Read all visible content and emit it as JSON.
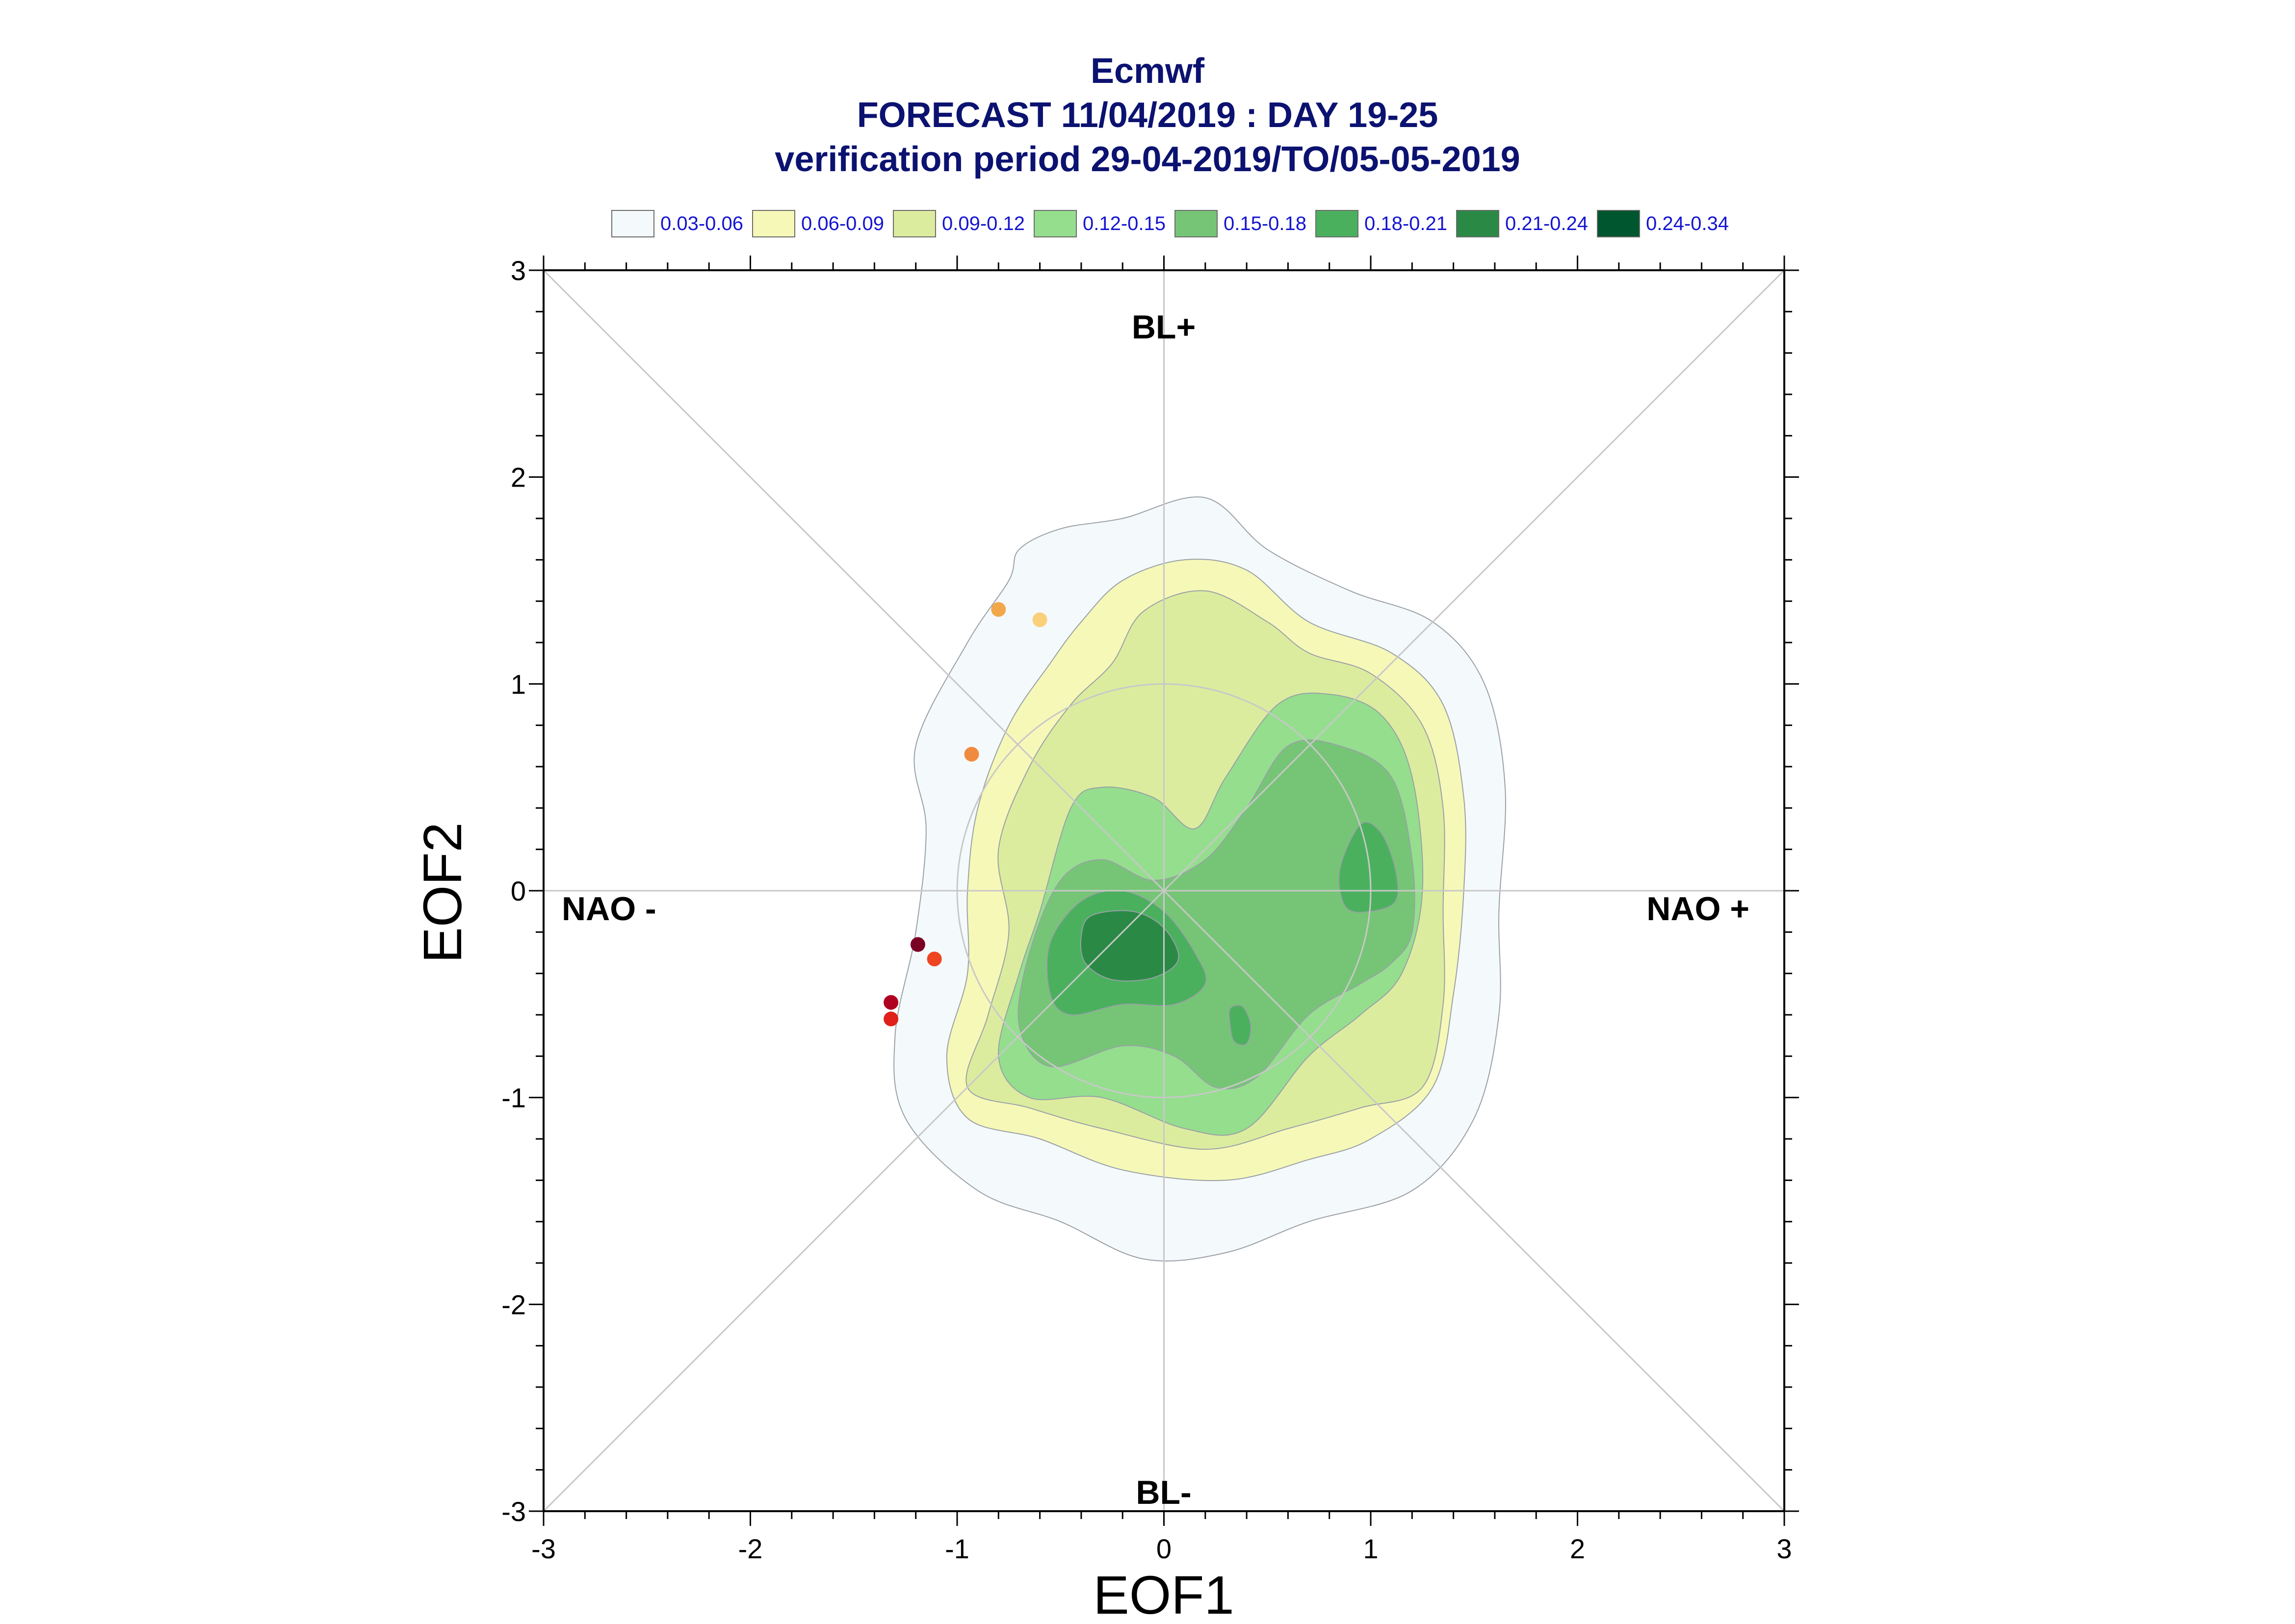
{
  "chart_data": {
    "type": "contour",
    "title_lines": [
      "Ecmwf",
      "FORECAST 11/04/2019 : DAY 19-25",
      "verification period 29-04-2019/TO/05-05-2019"
    ],
    "xlabel": "EOF1",
    "ylabel": "EOF2",
    "xlim": [
      -3,
      3
    ],
    "ylim": [
      -3,
      3
    ],
    "xticks": [
      "-3",
      "-2",
      "-1",
      "0",
      "1",
      "2",
      "3"
    ],
    "yticks": [
      "-3",
      "-2",
      "-1",
      "0",
      "1",
      "2",
      "3"
    ],
    "region_labels": {
      "top": "BL+",
      "bottom": "BL-",
      "left": "NAO -",
      "right": "NAO +"
    },
    "legend": [
      {
        "label": "0.03-0.06",
        "color": "#f4f9fc"
      },
      {
        "label": "0.06-0.09",
        "color": "#f6f8b8"
      },
      {
        "label": "0.09-0.12",
        "color": "#dcec9f"
      },
      {
        "label": "0.12-0.15",
        "color": "#94de8e"
      },
      {
        "label": "0.15-0.18",
        "color": "#76c576"
      },
      {
        "label": "0.18-0.21",
        "color": "#4bb05e"
      },
      {
        "label": "0.21-0.24",
        "color": "#2a8a45"
      },
      {
        "label": "0.24-0.34",
        "color": "#00562e"
      }
    ],
    "contours": [
      {
        "level": "0.03-0.06",
        "color": "#f4f9fc",
        "points": [
          [
            -0.7,
            1.65
          ],
          [
            -0.5,
            1.75
          ],
          [
            -0.2,
            1.8
          ],
          [
            0.2,
            1.9
          ],
          [
            0.5,
            1.65
          ],
          [
            0.9,
            1.45
          ],
          [
            1.3,
            1.3
          ],
          [
            1.55,
            1.0
          ],
          [
            1.65,
            0.5
          ],
          [
            1.62,
            -0.1
          ],
          [
            1.62,
            -0.6
          ],
          [
            1.5,
            -1.1
          ],
          [
            1.2,
            -1.45
          ],
          [
            0.7,
            -1.6
          ],
          [
            0.3,
            -1.75
          ],
          [
            -0.1,
            -1.78
          ],
          [
            -0.5,
            -1.6
          ],
          [
            -0.9,
            -1.45
          ],
          [
            -1.25,
            -1.1
          ],
          [
            -1.3,
            -0.7
          ],
          [
            -1.2,
            -0.2
          ],
          [
            -1.15,
            0.3
          ],
          [
            -1.2,
            0.7
          ],
          [
            -0.95,
            1.2
          ],
          [
            -0.75,
            1.5
          ]
        ]
      },
      {
        "level": "0.06-0.09",
        "color": "#f6f8b8",
        "points": [
          [
            -0.4,
            1.3
          ],
          [
            -0.2,
            1.5
          ],
          [
            0.1,
            1.6
          ],
          [
            0.4,
            1.55
          ],
          [
            0.7,
            1.3
          ],
          [
            1.1,
            1.15
          ],
          [
            1.35,
            0.9
          ],
          [
            1.45,
            0.45
          ],
          [
            1.45,
            0.0
          ],
          [
            1.4,
            -0.5
          ],
          [
            1.3,
            -0.95
          ],
          [
            1.0,
            -1.2
          ],
          [
            0.7,
            -1.3
          ],
          [
            0.3,
            -1.4
          ],
          [
            -0.2,
            -1.35
          ],
          [
            -0.6,
            -1.2
          ],
          [
            -0.95,
            -1.1
          ],
          [
            -1.05,
            -0.8
          ],
          [
            -0.95,
            -0.4
          ],
          [
            -0.95,
            0.0
          ],
          [
            -0.9,
            0.4
          ],
          [
            -0.75,
            0.8
          ],
          [
            -0.55,
            1.1
          ]
        ]
      },
      {
        "level": "0.09-0.12",
        "color": "#dcec9f",
        "points": [
          [
            -0.25,
            1.1
          ],
          [
            -0.1,
            1.35
          ],
          [
            0.2,
            1.45
          ],
          [
            0.5,
            1.3
          ],
          [
            0.7,
            1.15
          ],
          [
            1.0,
            1.05
          ],
          [
            1.25,
            0.8
          ],
          [
            1.35,
            0.4
          ],
          [
            1.35,
            -0.1
          ],
          [
            1.35,
            -0.55
          ],
          [
            1.25,
            -0.95
          ],
          [
            0.95,
            -1.05
          ],
          [
            0.6,
            -1.15
          ],
          [
            0.2,
            -1.25
          ],
          [
            -0.3,
            -1.15
          ],
          [
            -0.65,
            -1.05
          ],
          [
            -0.95,
            -0.95
          ],
          [
            -0.85,
            -0.6
          ],
          [
            -0.75,
            -0.2
          ],
          [
            -0.8,
            0.2
          ],
          [
            -0.65,
            0.6
          ],
          [
            -0.45,
            0.9
          ]
        ]
      },
      {
        "level": "0.12-0.15",
        "color": "#94de8e",
        "points": [
          [
            -0.45,
            0.4
          ],
          [
            -0.3,
            0.5
          ],
          [
            -0.05,
            0.45
          ],
          [
            0.15,
            0.3
          ],
          [
            0.3,
            0.55
          ],
          [
            0.55,
            0.9
          ],
          [
            0.8,
            0.95
          ],
          [
            1.05,
            0.85
          ],
          [
            1.2,
            0.55
          ],
          [
            1.25,
            0.0
          ],
          [
            1.15,
            -0.4
          ],
          [
            0.95,
            -0.6
          ],
          [
            0.7,
            -0.8
          ],
          [
            0.4,
            -1.15
          ],
          [
            0.1,
            -1.15
          ],
          [
            -0.3,
            -1.0
          ],
          [
            -0.65,
            -1.0
          ],
          [
            -0.8,
            -0.8
          ],
          [
            -0.7,
            -0.4
          ],
          [
            -0.6,
            -0.1
          ]
        ]
      },
      {
        "level": "0.15-0.18",
        "color": "#76c576",
        "points": [
          [
            -0.5,
            0.05
          ],
          [
            -0.3,
            0.15
          ],
          [
            -0.05,
            0.05
          ],
          [
            0.2,
            0.15
          ],
          [
            0.4,
            0.4
          ],
          [
            0.6,
            0.7
          ],
          [
            0.85,
            0.7
          ],
          [
            1.1,
            0.55
          ],
          [
            1.2,
            0.15
          ],
          [
            1.2,
            -0.2
          ],
          [
            1.1,
            -0.35
          ],
          [
            0.95,
            -0.45
          ],
          [
            0.7,
            -0.6
          ],
          [
            0.45,
            -0.9
          ],
          [
            0.25,
            -0.95
          ],
          [
            0.05,
            -0.8
          ],
          [
            -0.2,
            -0.75
          ],
          [
            -0.55,
            -0.85
          ],
          [
            -0.7,
            -0.65
          ],
          [
            -0.65,
            -0.3
          ]
        ]
      },
      {
        "level": "0.18-0.21",
        "color": "#4bb05e",
        "points": [
          [
            -0.4,
            -0.05
          ],
          [
            -0.2,
            0.0
          ],
          [
            0.0,
            -0.1
          ],
          [
            0.15,
            -0.3
          ],
          [
            0.2,
            -0.45
          ],
          [
            0.05,
            -0.55
          ],
          [
            -0.2,
            -0.55
          ],
          [
            -0.45,
            -0.6
          ],
          [
            -0.55,
            -0.5
          ],
          [
            -0.55,
            -0.25
          ]
        ]
      },
      {
        "level": "0.18-0.21",
        "color": "#4bb05e",
        "points": [
          [
            0.85,
            0.1
          ],
          [
            0.95,
            0.32
          ],
          [
            1.05,
            0.28
          ],
          [
            1.12,
            0.1
          ],
          [
            1.12,
            -0.05
          ],
          [
            1.0,
            -0.1
          ],
          [
            0.88,
            -0.08
          ]
        ]
      },
      {
        "level": "0.18-0.21",
        "color": "#4bb05e",
        "points": [
          [
            0.32,
            -0.57
          ],
          [
            0.38,
            -0.56
          ],
          [
            0.42,
            -0.65
          ],
          [
            0.4,
            -0.74
          ],
          [
            0.34,
            -0.73
          ],
          [
            0.32,
            -0.65
          ]
        ]
      },
      {
        "level": "0.21-0.24",
        "color": "#2a8a45",
        "points": [
          [
            -0.35,
            -0.12
          ],
          [
            -0.15,
            -0.1
          ],
          [
            0.0,
            -0.18
          ],
          [
            0.07,
            -0.33
          ],
          [
            -0.05,
            -0.42
          ],
          [
            -0.25,
            -0.43
          ],
          [
            -0.38,
            -0.35
          ],
          [
            -0.4,
            -0.22
          ]
        ]
      }
    ],
    "points": [
      {
        "x": -0.8,
        "y": 1.36,
        "color": "#f2a84a"
      },
      {
        "x": -0.6,
        "y": 1.31,
        "color": "#fbd07a"
      },
      {
        "x": -0.93,
        "y": 0.66,
        "color": "#f08a3e"
      },
      {
        "x": -1.19,
        "y": -0.26,
        "color": "#7a0024"
      },
      {
        "x": -1.11,
        "y": -0.33,
        "color": "#ee4422"
      },
      {
        "x": -1.32,
        "y": -0.54,
        "color": "#b00020"
      },
      {
        "x": -1.32,
        "y": -0.62,
        "color": "#e0201a"
      }
    ]
  }
}
